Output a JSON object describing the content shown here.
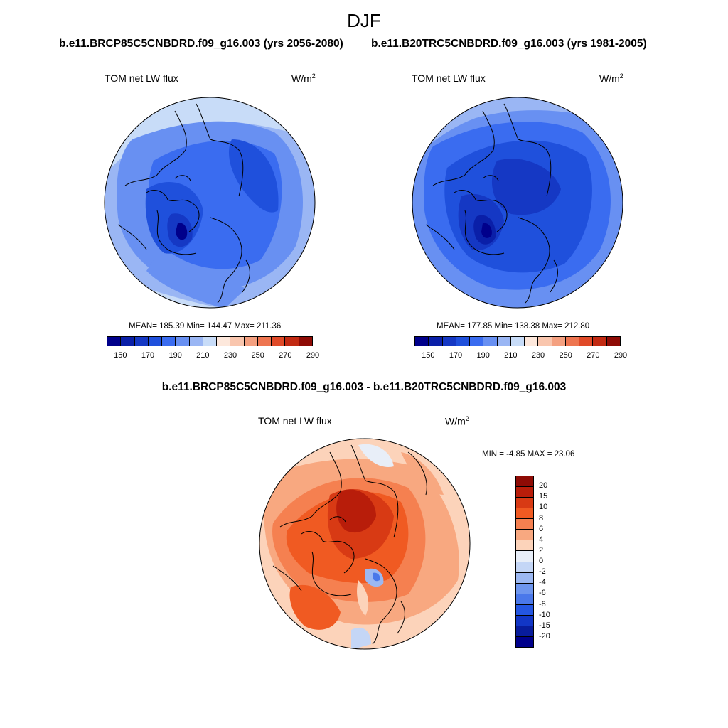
{
  "title": "DJF",
  "panels": [
    {
      "case": "b.e11.BRCP85C5CNBDRD.f09_g16.003 (yrs 2056-2080)",
      "variable": "TOM net LW flux",
      "units_base": "W/m",
      "units_exp": "2",
      "stats": "MEAN= 185.39  Min= 144.47  Max= 211.36",
      "mean": 185.39,
      "min": 144.47,
      "max": 211.36
    },
    {
      "case": "b.e11.B20TRC5CNBDRD.f09_g16.003 (yrs 1981-2005)",
      "variable": "TOM net LW flux",
      "units_base": "W/m",
      "units_exp": "2",
      "stats": "MEAN= 177.85  Min= 138.38  Max= 212.80",
      "mean": 177.85,
      "min": 138.38,
      "max": 212.8
    }
  ],
  "diff": {
    "title": "b.e11.BRCP85C5CNBDRD.f09_g16.003 - b.e11.B20TRC5CNBDRD.f09_g16.003",
    "variable": "TOM net LW flux",
    "units_base": "W/m",
    "units_exp": "2",
    "stats": "MIN =  -4.85 MAX =  23.06",
    "min": -4.85,
    "max": 23.06
  },
  "abs_colorbar": {
    "colors": [
      "#00008b",
      "#0a1fa8",
      "#1538c4",
      "#1f50dc",
      "#3a6cf0",
      "#6890f2",
      "#9ab6f4",
      "#c8dcf8",
      "#fde8dc",
      "#f9c6ae",
      "#f4a080",
      "#ee7550",
      "#e04a28",
      "#c22a12",
      "#8e0b05"
    ],
    "ticks": [
      "150",
      "170",
      "190",
      "210",
      "230",
      "250",
      "270",
      "290"
    ]
  },
  "diff_colorbar": {
    "colors": [
      "#8e0b05",
      "#b81d0a",
      "#d83a14",
      "#f05a22",
      "#f58050",
      "#f8a880",
      "#fcd3ba",
      "#e8eef8",
      "#c4d6f6",
      "#9cb8f2",
      "#6e96ee",
      "#4a78ea",
      "#2456e2",
      "#1236c6",
      "#081c9c",
      "#00008b"
    ],
    "ticks": [
      "20",
      "15",
      "10",
      "8",
      "6",
      "4",
      "2",
      "0",
      "-2",
      "-4",
      "-6",
      "-8",
      "-10",
      "-15",
      "-20"
    ]
  }
}
